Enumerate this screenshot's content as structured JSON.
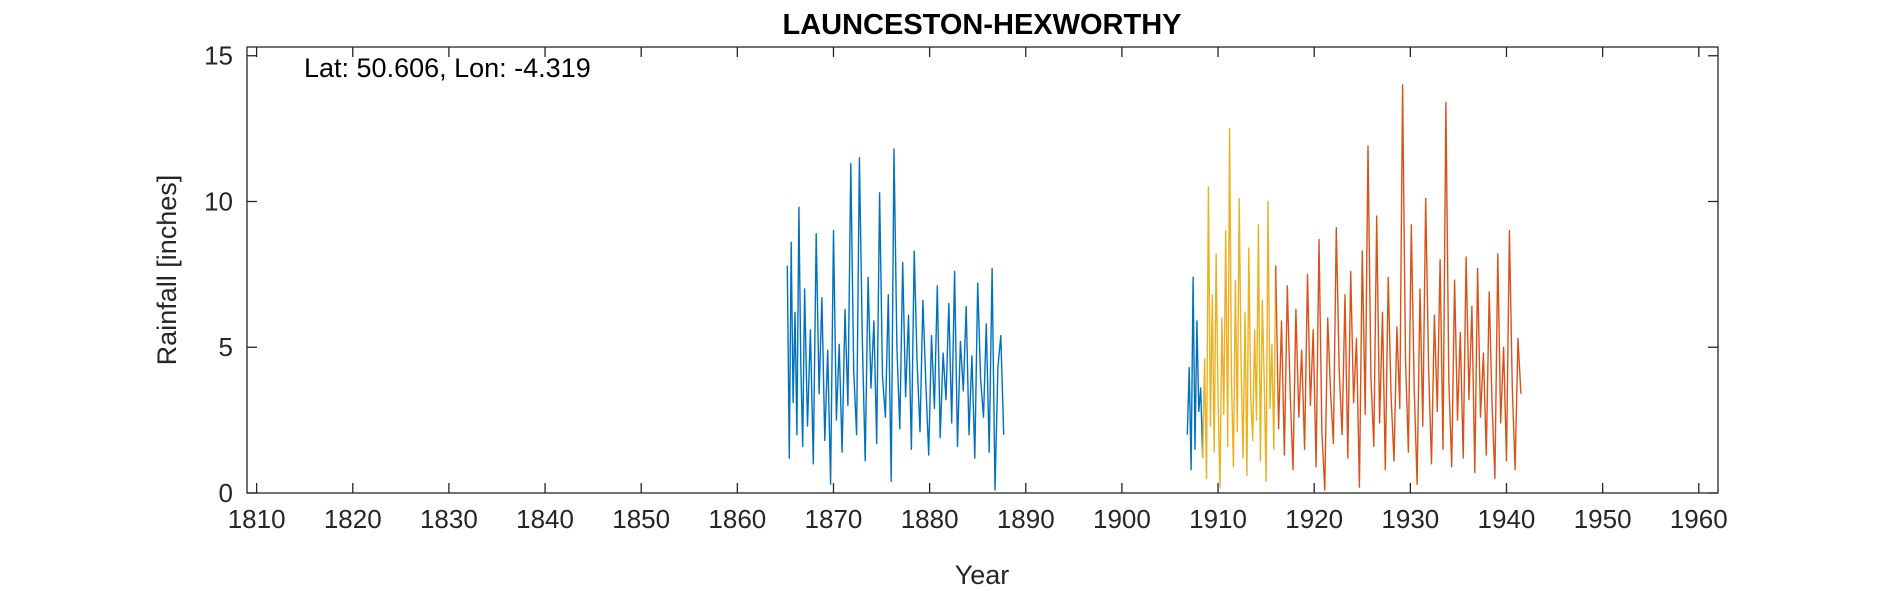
{
  "chart_data": {
    "type": "line",
    "title": "LAUNCESTON-HEXWORTHY",
    "xlabel": "Year",
    "ylabel": "Rainfall [inches]",
    "xlim": [
      1809,
      1962
    ],
    "ylim": [
      0,
      15.3
    ],
    "xticks": [
      1810,
      1820,
      1830,
      1840,
      1850,
      1860,
      1870,
      1880,
      1890,
      1900,
      1910,
      1920,
      1930,
      1940,
      1950,
      1960
    ],
    "yticks": [
      0,
      5,
      10,
      15
    ],
    "grid": false,
    "annotation": "Lat: 50.606, Lon: -4.319",
    "series": [
      {
        "color": "#0072BD",
        "x": [
          1865.2,
          1865.4,
          1865.6,
          1865.8,
          1866.0,
          1866.2,
          1866.4,
          1866.6,
          1866.8,
          1867.0,
          1867.3,
          1867.6,
          1867.9,
          1868.2,
          1868.5,
          1868.8,
          1869.1,
          1869.4,
          1869.7,
          1870.0,
          1870.3,
          1870.6,
          1870.9,
          1871.2,
          1871.5,
          1871.8,
          1872.1,
          1872.4,
          1872.7,
          1873.0,
          1873.3,
          1873.6,
          1873.9,
          1874.2,
          1874.5,
          1874.8,
          1875.1,
          1875.4,
          1875.7,
          1876.0,
          1876.3,
          1876.6,
          1876.9,
          1877.2,
          1877.5,
          1877.8,
          1878.1,
          1878.4,
          1878.7,
          1879.0,
          1879.3,
          1879.6,
          1879.9,
          1880.2,
          1880.5,
          1880.8,
          1881.1,
          1881.4,
          1881.7,
          1882.0,
          1882.3,
          1882.6,
          1882.9,
          1883.2,
          1883.5,
          1883.8,
          1884.1,
          1884.4,
          1884.7,
          1885.0,
          1885.3,
          1885.6,
          1885.9,
          1886.2,
          1886.5,
          1886.8,
          1887.1,
          1887.4,
          1887.7
        ],
        "y": [
          7.8,
          1.2,
          8.6,
          3.1,
          6.2,
          2.0,
          9.8,
          4.4,
          1.6,
          7.0,
          2.3,
          5.6,
          1.0,
          8.9,
          3.4,
          6.7,
          1.8,
          4.9,
          0.3,
          9.0,
          2.5,
          5.1,
          1.4,
          6.3,
          3.0,
          11.3,
          4.2,
          2.0,
          11.5,
          5.3,
          1.1,
          7.4,
          3.6,
          5.9,
          1.7,
          10.3,
          4.0,
          2.6,
          6.8,
          0.4,
          11.8,
          5.0,
          2.2,
          7.9,
          3.3,
          6.1,
          1.5,
          8.3,
          4.5,
          2.1,
          6.6,
          3.8,
          1.3,
          5.4,
          2.9,
          7.1,
          1.9,
          4.8,
          3.2,
          6.5,
          2.4,
          7.6,
          1.6,
          5.2,
          3.5,
          6.4,
          2.0,
          4.7,
          1.2,
          7.2,
          3.9,
          2.6,
          5.8,
          1.4,
          7.7,
          0.1,
          4.3,
          5.4,
          2.0
        ]
      },
      {
        "color": "#0072BD",
        "x": [
          1906.8,
          1907.0,
          1907.2,
          1907.4,
          1907.6,
          1907.8,
          1908.0,
          1908.2,
          1908.4
        ],
        "y": [
          2.0,
          4.3,
          0.8,
          7.4,
          1.5,
          5.9,
          2.8,
          3.6,
          1.2
        ]
      },
      {
        "color": "#EDB120",
        "x": [
          1908.4,
          1908.6,
          1908.8,
          1909.0,
          1909.2,
          1909.4,
          1909.6,
          1909.8,
          1910.0,
          1910.2,
          1910.4,
          1910.6,
          1910.8,
          1911.0,
          1911.2,
          1911.4,
          1911.6,
          1911.8,
          1912.0,
          1912.2,
          1912.4,
          1912.6,
          1912.8,
          1913.0,
          1913.2,
          1913.4,
          1913.6,
          1913.8,
          1914.0,
          1914.2,
          1914.4,
          1914.6,
          1914.8,
          1915.0,
          1915.2,
          1915.4,
          1915.6,
          1915.8,
          1916.0
        ],
        "y": [
          1.2,
          4.6,
          0.5,
          10.5,
          2.3,
          6.8,
          1.4,
          8.2,
          3.1,
          0.2,
          6.0,
          2.7,
          9.0,
          1.6,
          12.5,
          3.8,
          0.9,
          7.3,
          2.1,
          10.1,
          4.4,
          1.2,
          6.2,
          0.6,
          8.4,
          3.3,
          1.8,
          5.6,
          2.5,
          9.2,
          1.1,
          6.6,
          3.9,
          0.4,
          10.0,
          2.9,
          5.1,
          1.5,
          7.8
        ]
      },
      {
        "color": "#D95319",
        "x": [
          1916.0,
          1916.3,
          1916.6,
          1916.9,
          1917.2,
          1917.5,
          1917.8,
          1918.1,
          1918.4,
          1918.7,
          1919.0,
          1919.3,
          1919.6,
          1919.9,
          1920.2,
          1920.5,
          1920.8,
          1921.1,
          1921.4,
          1921.7,
          1922.0,
          1922.3,
          1922.6,
          1922.9,
          1923.2,
          1923.5,
          1923.8,
          1924.1,
          1924.4,
          1924.7,
          1925.0,
          1925.3,
          1925.6,
          1925.9,
          1926.2,
          1926.5,
          1926.8,
          1927.1,
          1927.4,
          1927.7,
          1928.0,
          1928.3,
          1928.6,
          1928.9,
          1929.2,
          1929.5,
          1929.8,
          1930.1,
          1930.4,
          1930.7,
          1931.0,
          1931.3,
          1931.6,
          1931.9,
          1932.2,
          1932.5,
          1932.8,
          1933.1,
          1933.4,
          1933.7,
          1934.0,
          1934.3,
          1934.6,
          1934.9,
          1935.2,
          1935.5,
          1935.8,
          1936.1,
          1936.4,
          1936.7,
          1937.0,
          1937.3,
          1937.6,
          1937.9,
          1938.2,
          1938.5,
          1938.8,
          1939.1,
          1939.4,
          1939.7,
          1940.0,
          1940.3,
          1940.6,
          1940.9,
          1941.2,
          1941.5
        ],
        "y": [
          7.8,
          2.2,
          5.9,
          1.3,
          7.1,
          3.4,
          0.8,
          6.3,
          2.6,
          4.9,
          1.5,
          7.5,
          3.0,
          5.6,
          0.9,
          8.7,
          2.1,
          0.1,
          6.0,
          3.5,
          1.7,
          9.1,
          4.2,
          2.0,
          6.8,
          1.2,
          7.6,
          3.1,
          5.3,
          0.2,
          8.3,
          2.7,
          11.9,
          4.0,
          1.6,
          9.5,
          2.4,
          6.2,
          0.8,
          7.4,
          3.3,
          1.1,
          5.7,
          2.9,
          14.0,
          4.6,
          1.4,
          9.2,
          3.6,
          0.3,
          7.0,
          2.3,
          10.1,
          4.3,
          1.0,
          6.1,
          2.8,
          8.0,
          1.5,
          13.4,
          3.9,
          0.9,
          7.3,
          2.5,
          5.5,
          1.2,
          8.1,
          3.2,
          6.4,
          0.7,
          7.7,
          2.6,
          4.8,
          1.3,
          6.9,
          3.0,
          0.5,
          8.2,
          2.4,
          5.0,
          1.1,
          9.0,
          3.6,
          0.8,
          5.3,
          3.4
        ]
      }
    ]
  }
}
